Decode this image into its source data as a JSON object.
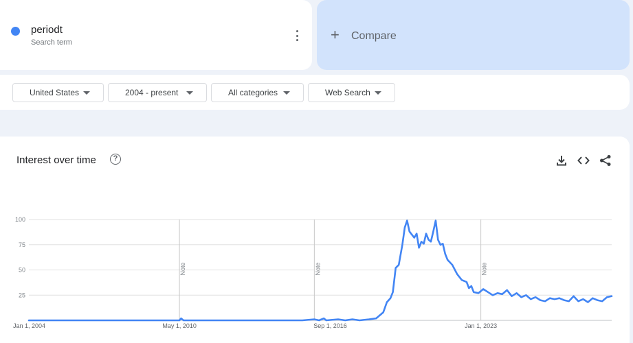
{
  "search_term": {
    "name": "periodt",
    "subtitle": "Search term",
    "dot_color": "#4285f4"
  },
  "compare": {
    "label": "Compare",
    "plus": "+"
  },
  "filters": [
    {
      "label": "United States"
    },
    {
      "label": "2004 - present"
    },
    {
      "label": "All categories"
    },
    {
      "label": "Web Search"
    }
  ],
  "chart_card": {
    "title": "Interest over time",
    "help_icon": "question-circle-icon",
    "tools": [
      "download-icon",
      "embed-code-icon",
      "share-icon"
    ]
  },
  "chart_data": {
    "type": "line",
    "series": [
      {
        "color": "#4285f4",
        "values": [
          [
            2004.0,
            0
          ],
          [
            2010.0,
            0
          ],
          [
            2010.33,
            0
          ],
          [
            2010.4,
            2
          ],
          [
            2010.5,
            0
          ],
          [
            2015.5,
            0
          ],
          [
            2016.0,
            1
          ],
          [
            2016.2,
            0
          ],
          [
            2016.4,
            2
          ],
          [
            2016.5,
            0
          ],
          [
            2017.0,
            1
          ],
          [
            2017.3,
            0
          ],
          [
            2017.6,
            1
          ],
          [
            2017.9,
            0
          ],
          [
            2018.3,
            1
          ],
          [
            2018.6,
            2
          ],
          [
            2018.9,
            8
          ],
          [
            2019.05,
            18
          ],
          [
            2019.2,
            22
          ],
          [
            2019.3,
            28
          ],
          [
            2019.42,
            52
          ],
          [
            2019.55,
            55
          ],
          [
            2019.7,
            75
          ],
          [
            2019.8,
            92
          ],
          [
            2019.9,
            99
          ],
          [
            2020.0,
            88
          ],
          [
            2020.1,
            85
          ],
          [
            2020.2,
            82
          ],
          [
            2020.3,
            86
          ],
          [
            2020.4,
            72
          ],
          [
            2020.5,
            78
          ],
          [
            2020.6,
            76
          ],
          [
            2020.7,
            86
          ],
          [
            2020.8,
            80
          ],
          [
            2020.9,
            78
          ],
          [
            2021.0,
            88
          ],
          [
            2021.1,
            99
          ],
          [
            2021.2,
            80
          ],
          [
            2021.3,
            75
          ],
          [
            2021.4,
            76
          ],
          [
            2021.5,
            66
          ],
          [
            2021.6,
            60
          ],
          [
            2021.8,
            55
          ],
          [
            2022.0,
            46
          ],
          [
            2022.2,
            40
          ],
          [
            2022.4,
            38
          ],
          [
            2022.5,
            32
          ],
          [
            2022.6,
            34
          ],
          [
            2022.7,
            28
          ],
          [
            2022.9,
            27
          ],
          [
            2023.1,
            31
          ],
          [
            2023.3,
            28
          ],
          [
            2023.5,
            25
          ],
          [
            2023.7,
            27
          ],
          [
            2023.9,
            26
          ],
          [
            2024.1,
            30
          ],
          [
            2024.3,
            24
          ],
          [
            2024.5,
            27
          ],
          [
            2024.7,
            23
          ],
          [
            2024.9,
            25
          ],
          [
            2025.1,
            21
          ],
          [
            2025.3,
            23
          ],
          [
            2025.5,
            20
          ],
          [
            2025.7,
            19
          ],
          [
            2025.9,
            22
          ],
          [
            2026.1,
            21
          ],
          [
            2026.3,
            22
          ],
          [
            2026.5,
            20
          ],
          [
            2026.7,
            19
          ],
          [
            2026.9,
            24
          ],
          [
            2027.1,
            19
          ],
          [
            2027.3,
            21
          ],
          [
            2027.5,
            18
          ],
          [
            2027.7,
            22
          ],
          [
            2027.9,
            20
          ],
          [
            2028.1,
            19
          ],
          [
            2028.3,
            23
          ],
          [
            2028.5,
            24
          ]
        ]
      }
    ],
    "xlim": [
      2004.0,
      2028.5
    ],
    "ylim": [
      0,
      100
    ],
    "yticks": [
      100,
      75,
      50,
      25
    ],
    "xticks": [
      {
        "label": "Jan 1, 2004",
        "x": 2004.0
      },
      {
        "label": "May 1, 2010",
        "x": 2010.33
      },
      {
        "label": "Sep 1, 2016",
        "x": 2016.67
      },
      {
        "label": "Jan 1, 2023",
        "x": 2023.0
      }
    ],
    "notes": [
      {
        "label": "Note",
        "x": 2010.33
      },
      {
        "label": "Note",
        "x": 2016.0
      },
      {
        "label": "Note",
        "x": 2023.0
      }
    ],
    "grid": true
  }
}
